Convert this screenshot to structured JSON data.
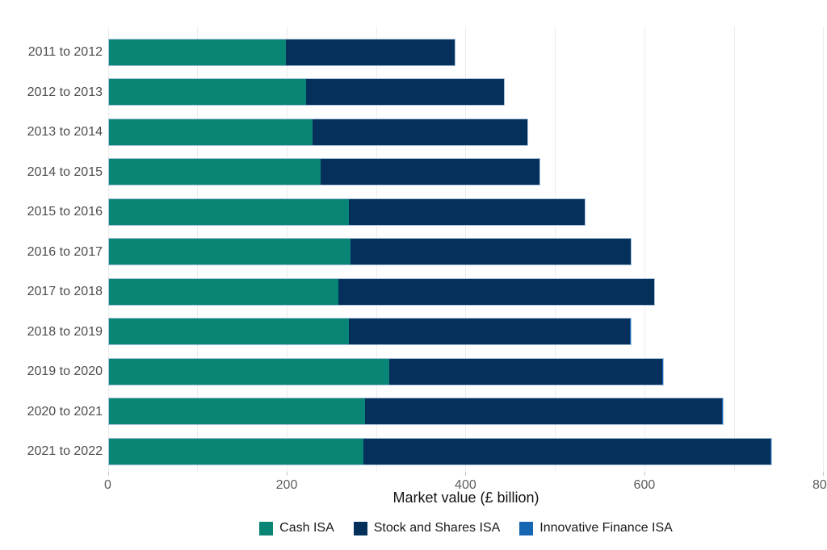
{
  "chart_data": {
    "type": "bar",
    "orientation": "horizontal",
    "stacked": true,
    "title": "",
    "xlabel": "Market value (£ billion)",
    "ylabel": "",
    "categories": [
      "2011 to 2012",
      "2012 to 2013",
      "2013 to 2014",
      "2014 to 2015",
      "2015 to 2016",
      "2016 to 2017",
      "2017 to 2018",
      "2018 to 2019",
      "2019 to 2020",
      "2020 to 2021",
      "2021 to 2022"
    ],
    "series": [
      {
        "name": "Cash ISA",
        "color": "#088575",
        "values": [
          198,
          221,
          228,
          237,
          269,
          270,
          257,
          269,
          314,
          287,
          285
        ]
      },
      {
        "name": "Stock and Shares ISA",
        "color": "#06305c",
        "values": [
          189,
          221,
          240,
          245,
          263,
          314,
          353,
          314,
          305,
          399,
          455
        ]
      },
      {
        "name": "Innovative Finance ISA",
        "color": "#1666b3",
        "values": [
          0,
          0,
          0,
          0,
          0,
          0.1,
          0.3,
          0.6,
          0.9,
          1.0,
          1.1
        ]
      }
    ],
    "totals": [
      387,
      442,
      468,
      482,
      532,
      584,
      610,
      583,
      619,
      686,
      740
    ],
    "xlim": [
      0,
      802
    ],
    "x_major_ticks": [
      0,
      200,
      400,
      600,
      800
    ],
    "x_tick_labels": [
      "0",
      "200",
      "400",
      "600",
      "800"
    ],
    "x_minor_gridlines": [
      100,
      300,
      500,
      700
    ],
    "grid": "vertical-only",
    "legend_position": "bottom-center",
    "bar_stroke_color": "#a9c3dc",
    "gridline_color": "#ececec",
    "background_color": "#ffffff"
  }
}
